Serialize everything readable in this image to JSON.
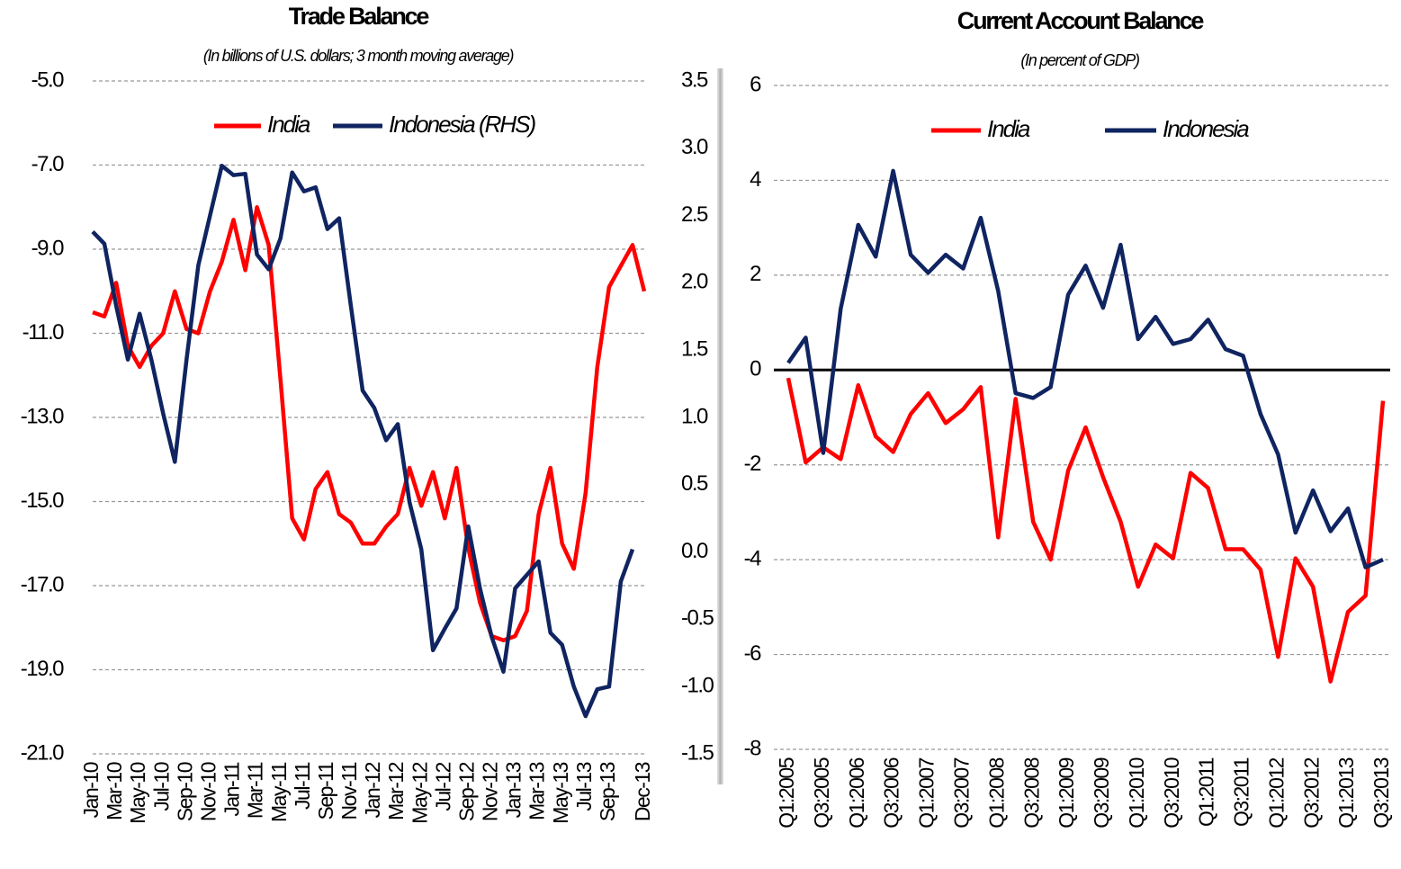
{
  "chart_data": [
    {
      "type": "line",
      "title": "Trade Balance",
      "subtitle": "(In billions of U.S. dollars; 3 month moving average)",
      "categories": [
        "Jan-10",
        null,
        "Mar-10",
        null,
        "May-10",
        null,
        "Jul-10",
        null,
        "Sep-10",
        null,
        "Nov-10",
        null,
        "Jan-11",
        null,
        "Mar-11",
        null,
        "May-11",
        null,
        "Jul-11",
        null,
        "Sep-11",
        null,
        "Nov-11",
        null,
        "Jan-12",
        null,
        "Mar-12",
        null,
        "May-12",
        null,
        "Jul-12",
        null,
        "Sep-12",
        null,
        "Nov-12",
        null,
        "Jan-13",
        null,
        "Mar-13",
        null,
        "May-13",
        null,
        "Jul-13",
        null,
        "Sep-13",
        null,
        null,
        "Dec-13"
      ],
      "series": [
        {
          "name": "India",
          "color": "#ff0000",
          "axis": "y",
          "values": [
            -10.5,
            -10.6,
            -9.8,
            -11.3,
            -11.8,
            -11.3,
            -11.0,
            -10.0,
            -10.9,
            -11.0,
            -10.0,
            -9.3,
            -8.3,
            -9.5,
            -8.0,
            -8.9,
            -12.1,
            -15.4,
            -15.9,
            -14.7,
            -14.3,
            -15.3,
            -15.5,
            -16.0,
            -16.0,
            -15.6,
            -15.3,
            -14.2,
            -15.1,
            -14.3,
            -15.4,
            -14.2,
            -16.1,
            -17.4,
            -18.2,
            -18.3,
            -18.2,
            -17.6,
            -15.3,
            -14.2,
            -16.0,
            -16.6,
            -14.8,
            -11.8,
            -9.9,
            -9.4,
            -8.9,
            -10.0
          ]
        },
        {
          "name": "Indonesia (RHS)",
          "color": "#0f2460",
          "axis": "y2",
          "values": [
            2.38,
            2.29,
            1.83,
            1.43,
            1.77,
            1.43,
            1.03,
            0.67,
            1.43,
            2.13,
            2.5,
            2.87,
            2.8,
            2.81,
            2.21,
            2.1,
            2.33,
            2.82,
            2.68,
            2.71,
            2.4,
            2.48,
            1.83,
            1.2,
            1.07,
            0.83,
            0.95,
            0.37,
            0.02,
            -0.73,
            -0.57,
            -0.42,
            0.19,
            -0.27,
            -0.63,
            -0.89,
            -0.27,
            -0.17,
            -0.07,
            -0.6,
            -0.69,
            -1.0,
            -1.22,
            -1.02,
            -1.0,
            -0.22,
            0.02,
            null
          ]
        }
      ],
      "ylim": [
        -21,
        -5
      ],
      "yticks": [
        {
          "value": -5,
          "label": "-5.0"
        },
        {
          "value": -7,
          "label": "-7.0"
        },
        {
          "value": -9,
          "label": "-9.0"
        },
        {
          "value": -11,
          "label": "-11.0"
        },
        {
          "value": -13,
          "label": "-13.0"
        },
        {
          "value": -15,
          "label": "-15.0"
        },
        {
          "value": -17,
          "label": "-17.0"
        },
        {
          "value": -19,
          "label": "-19.0"
        },
        {
          "value": -21,
          "label": "-21.0"
        }
      ],
      "y2lim": [
        -1.5,
        3.5
      ],
      "y2ticks": [
        3.5,
        {
          "value": 3,
          "label": "3.0"
        },
        2.5,
        {
          "value": 2,
          "label": "2.0"
        },
        1.5,
        {
          "value": 1,
          "label": "1.0"
        },
        0.5,
        {
          "value": 0,
          "label": "0.0"
        },
        -0.5,
        {
          "value": -1,
          "label": "-1.0"
        },
        -1.5
      ],
      "grid": true
    },
    {
      "type": "line",
      "title": "Current Account Balance",
      "subtitle": "(In percent of GDP)",
      "categories": [
        "Q1:2005",
        null,
        "Q3:2005",
        null,
        "Q1:2006",
        null,
        "Q3:2006",
        null,
        "Q1:2007",
        null,
        "Q3:2007",
        null,
        "Q1:2008",
        null,
        "Q3:2008",
        null,
        "Q1:2009",
        null,
        "Q3:2009",
        null,
        "Q1:2010",
        null,
        "Q3:2010",
        null,
        "Q1:2011",
        null,
        "Q3:2011",
        null,
        "Q1:2012",
        null,
        "Q3:2012",
        null,
        "Q1:2013",
        null,
        "Q3:2013"
      ],
      "series": [
        {
          "name": "India",
          "color": "#ff0000",
          "axis": "y",
          "values": [
            -0.17,
            -1.95,
            -1.63,
            -1.88,
            -0.32,
            -1.4,
            -1.73,
            -0.93,
            -0.49,
            -1.12,
            -0.83,
            -0.36,
            -3.53,
            -0.61,
            -3.2,
            -4.0,
            -2.12,
            -1.21,
            -2.26,
            -3.2,
            -4.57,
            -3.68,
            -3.97,
            -2.17,
            -2.49,
            -3.78,
            -3.78,
            -4.21,
            -6.05,
            -3.97,
            -4.57,
            -6.57,
            -5.1,
            -4.76,
            -0.65
          ]
        },
        {
          "name": "Indonesia",
          "color": "#0f2460",
          "axis": "y",
          "values": [
            0.15,
            0.68,
            -1.75,
            1.29,
            3.06,
            2.39,
            4.2,
            2.43,
            2.05,
            2.43,
            2.14,
            3.21,
            1.67,
            -0.49,
            -0.59,
            -0.36,
            1.59,
            2.2,
            1.31,
            2.64,
            0.65,
            1.12,
            0.55,
            0.65,
            1.06,
            0.44,
            0.3,
            -0.93,
            -1.78,
            -3.43,
            -2.54,
            -3.4,
            -2.92,
            -4.16,
            -4.0
          ]
        }
      ],
      "ylim": [
        -8,
        6
      ],
      "yticks": [
        6,
        4,
        2,
        0,
        -2,
        -4,
        -6,
        -8
      ],
      "grid": true,
      "zero_line": true
    }
  ]
}
